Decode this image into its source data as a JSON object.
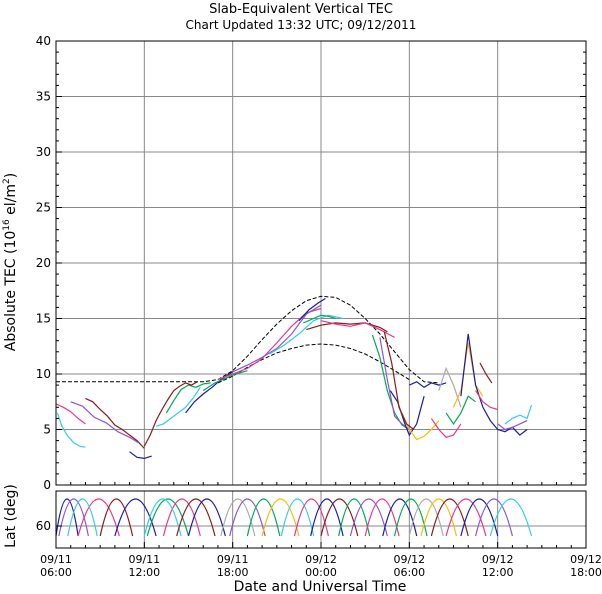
{
  "chart_data": {
    "type": "line",
    "title": "Slab-Equivalent Vertical TEC",
    "subtitle": "Chart Updated 13:32 UTC; 09/12/2011",
    "xlabel": "Date and Universal Time",
    "ylabel": "Absolute TEC (10",
    "ylabel_sup": "16",
    "ylabel_mid": " el/m",
    "ylabel_sup2": "2",
    "ylabel_end": ")",
    "ylabel2": "Lat (deg)",
    "xlim": [
      6,
      42
    ],
    "ylim": [
      0,
      40
    ],
    "yticks": [
      0,
      5,
      10,
      15,
      20,
      25,
      30,
      35,
      40
    ],
    "xticks": [
      {
        "x": 6,
        "date": "09/11",
        "time": "06:00"
      },
      {
        "x": 12,
        "date": "09/11",
        "time": "12:00"
      },
      {
        "x": 18,
        "date": "09/11",
        "time": "18:00"
      },
      {
        "x": 24,
        "date": "09/12",
        "time": "00:00"
      },
      {
        "x": 30,
        "date": "09/12",
        "time": "06:00"
      },
      {
        "x": 36,
        "date": "09/12",
        "time": "12:00"
      },
      {
        "x": 42,
        "date": "09/12",
        "time": "18:00"
      }
    ],
    "lat_ticks": [
      60
    ],
    "grid": true,
    "reference_lines": [
      {
        "name": "upper envelope",
        "style": "dashed",
        "x": [
          6,
          8,
          10,
          12,
          14,
          16,
          17,
          18,
          19,
          20,
          21,
          22,
          23,
          24,
          25,
          26,
          27,
          28,
          29,
          30,
          31,
          32
        ],
        "y": [
          9.3,
          9.3,
          9.3,
          9.3,
          9.3,
          9.3,
          9.5,
          10.3,
          11.6,
          13.1,
          14.5,
          15.7,
          16.6,
          17.0,
          16.9,
          16.2,
          15.0,
          13.6,
          12.0,
          10.4,
          9.3,
          9.2
        ]
      },
      {
        "name": "lower envelope",
        "style": "dashed",
        "x": [
          17,
          18,
          19,
          20,
          21,
          22,
          23,
          24,
          25,
          26,
          27,
          28,
          29,
          30
        ],
        "y": [
          9.2,
          9.8,
          10.6,
          11.3,
          11.9,
          12.3,
          12.6,
          12.7,
          12.6,
          12.3,
          11.8,
          11.1,
          10.3,
          9.5
        ]
      }
    ],
    "series": [
      {
        "color": "#e8388c",
        "x": [
          6.0,
          6.5,
          7.0,
          7.5,
          8.0
        ],
        "y": [
          7.3,
          7.0,
          6.6,
          6.0,
          5.5
        ]
      },
      {
        "color": "#8b1a1a",
        "x": [
          8.0,
          8.5,
          9.0,
          9.5,
          10.0,
          10.5,
          11.0,
          11.5,
          12.0
        ],
        "y": [
          7.8,
          7.5,
          6.8,
          6.2,
          5.4,
          5.0,
          4.5,
          4.0,
          3.3
        ]
      },
      {
        "color": "#33ccee",
        "x": [
          6.1,
          6.4,
          6.8,
          7.2,
          7.6,
          8.0
        ],
        "y": [
          6.5,
          5.3,
          4.4,
          3.8,
          3.5,
          3.4
        ]
      },
      {
        "color": "#8855dd",
        "x": [
          7.0,
          7.8,
          8.6,
          9.4,
          10.2,
          11.0,
          11.6
        ],
        "y": [
          7.5,
          7.1,
          6.1,
          5.6,
          4.8,
          4.3,
          3.8
        ]
      },
      {
        "color": "#1a1aa8",
        "x": [
          11.0,
          11.5,
          12.0,
          12.5
        ],
        "y": [
          3.0,
          2.5,
          2.4,
          2.6
        ]
      },
      {
        "color": "#1a1aa8",
        "x": [
          14.8,
          15.4,
          16.0,
          16.6,
          17.2,
          18.0
        ],
        "y": [
          6.5,
          7.5,
          8.2,
          8.8,
          9.5,
          10.2
        ]
      },
      {
        "color": "#00aa55",
        "x": [
          13.5,
          14.0,
          14.5,
          15.0,
          15.5,
          16.0,
          16.5
        ],
        "y": [
          6.5,
          7.6,
          8.6,
          9.0,
          8.8,
          9.1,
          9.2
        ]
      },
      {
        "color": "#8b1a1a",
        "x": [
          12.0,
          12.4,
          12.8,
          13.2,
          13.6,
          14.0,
          14.4,
          14.8,
          15.2,
          15.6
        ],
        "y": [
          3.5,
          4.5,
          5.8,
          6.8,
          7.7,
          8.5,
          8.9,
          9.2,
          9.0,
          9.3
        ]
      },
      {
        "color": "#33ccee",
        "x": [
          12.8,
          13.3,
          13.8,
          14.3,
          14.8,
          15.3,
          15.8
        ],
        "y": [
          5.3,
          5.5,
          6.0,
          6.5,
          7.0,
          7.8,
          8.8
        ]
      },
      {
        "color": "#00aa55",
        "x": [
          16.0,
          16.8,
          17.5,
          18.2,
          19.0
        ],
        "y": [
          8.5,
          9.2,
          9.6,
          10.0,
          10.3
        ]
      },
      {
        "color": "#e8388c",
        "x": [
          17.0,
          18.0,
          19.0,
          20.0,
          21.0,
          22.0,
          23.0,
          24.0
        ],
        "y": [
          9.5,
          10.0,
          10.5,
          11.4,
          12.8,
          14.3,
          15.5,
          15.9
        ]
      },
      {
        "color": "#8855dd",
        "x": [
          18.0,
          19.0,
          20.0,
          21.0,
          22.0,
          23.0,
          24.0
        ],
        "y": [
          10.2,
          10.8,
          11.5,
          12.3,
          13.6,
          15.4,
          16.2
        ]
      },
      {
        "color": "#33ccee",
        "x": [
          20.5,
          21.5,
          22.5,
          23.5,
          24.5,
          25.5
        ],
        "y": [
          11.8,
          12.6,
          13.6,
          14.8,
          15.3,
          15.0
        ]
      },
      {
        "color": "#1a1aa8",
        "x": [
          22.5,
          23.2,
          23.8,
          24.3
        ],
        "y": [
          14.8,
          15.8,
          16.4,
          16.8
        ]
      },
      {
        "color": "#00aa55",
        "x": [
          22.8,
          23.5,
          24.0,
          24.5,
          25.0
        ],
        "y": [
          14.6,
          15.0,
          15.3,
          15.2,
          15.0
        ]
      },
      {
        "color": "#8b1a1a",
        "x": [
          23.0,
          24.0,
          25.0,
          26.0,
          27.0,
          28.0,
          28.5
        ],
        "y": [
          14.0,
          14.4,
          14.6,
          14.5,
          14.6,
          14.2,
          13.8
        ]
      },
      {
        "color": "#e8388c",
        "x": [
          24.0,
          25.0,
          26.0,
          27.0,
          28.0,
          29.0
        ],
        "y": [
          14.8,
          14.5,
          14.3,
          14.6,
          14.0,
          13.3
        ]
      },
      {
        "color": "#00aa55",
        "x": [
          27.5,
          28.0,
          28.5,
          29.0,
          29.5,
          30.0
        ],
        "y": [
          13.5,
          11.5,
          8.5,
          6.5,
          5.4,
          5.0
        ]
      },
      {
        "color": "#8855dd",
        "x": [
          28.0,
          28.5,
          29.0,
          29.5,
          30.0
        ],
        "y": [
          13.3,
          9.5,
          6.2,
          5.5,
          5.0
        ]
      },
      {
        "color": "#1a1aa8",
        "x": [
          28.7,
          29.2,
          29.7,
          30.0,
          30.5,
          31.0
        ],
        "y": [
          8.5,
          7.5,
          5.5,
          4.5,
          5.5,
          8.0
        ]
      },
      {
        "color": "#ffbb00",
        "x": [
          29.5,
          30.0,
          30.5,
          31.0,
          31.5,
          32.0
        ],
        "y": [
          6.5,
          5.0,
          4.1,
          4.4,
          5.0,
          5.8
        ]
      },
      {
        "color": "#8b1a1a",
        "x": [
          28.3,
          28.8,
          29.3,
          29.8,
          30.3
        ],
        "y": [
          13.8,
          11.0,
          7.0,
          5.5,
          5.0
        ]
      },
      {
        "color": "#1a1aa8",
        "x": [
          30.0,
          30.5,
          31.0,
          31.5,
          32.0,
          32.5
        ],
        "y": [
          9.0,
          9.3,
          8.8,
          9.2,
          9.0,
          9.2
        ]
      },
      {
        "color": "#e8388c",
        "x": [
          31.5,
          32.0,
          32.5,
          33.0,
          33.5
        ],
        "y": [
          6.0,
          5.0,
          4.3,
          4.5,
          5.5
        ]
      },
      {
        "color": "#aaaaaa",
        "x": [
          32.0,
          32.5,
          33.0,
          33.5
        ],
        "y": [
          8.5,
          10.5,
          9.0,
          7.0
        ]
      },
      {
        "color": "#00aa55",
        "x": [
          32.5,
          33.0,
          33.5,
          34.0,
          34.5
        ],
        "y": [
          6.5,
          5.5,
          6.5,
          8.0,
          7.5
        ]
      },
      {
        "color": "#ffbb00",
        "x": [
          33.0,
          33.5,
          34.0,
          34.5,
          35.0
        ],
        "y": [
          7.0,
          8.5,
          12.8,
          9.0,
          8.0
        ]
      },
      {
        "color": "#1a1aa8",
        "x": [
          33.5,
          34.0,
          34.5,
          35.0,
          35.5,
          36.0,
          36.5,
          37.0,
          37.5,
          38.0
        ],
        "y": [
          8.0,
          13.6,
          9.0,
          7.0,
          5.8,
          5.0,
          4.8,
          5.2,
          4.5,
          5.0
        ]
      },
      {
        "color": "#e8388c",
        "x": [
          34.5,
          35.0,
          35.5,
          36.0
        ],
        "y": [
          8.5,
          7.5,
          7.0,
          6.8
        ]
      },
      {
        "color": "#8b1a1a",
        "x": [
          34.8,
          35.2,
          35.6
        ],
        "y": [
          11.0,
          10.0,
          9.2
        ]
      },
      {
        "color": "#33ccee",
        "x": [
          36.5,
          37.0,
          37.5,
          38.0,
          38.3
        ],
        "y": [
          5.5,
          6.0,
          6.3,
          6.0,
          7.2
        ]
      },
      {
        "color": "#8855dd",
        "x": [
          36.0,
          36.5,
          37.0,
          37.5,
          38.0
        ],
        "y": [
          5.5,
          5.0,
          5.2,
          5.5,
          5.8
        ]
      }
    ],
    "lat_arcs": [
      {
        "color": "#1a1aa8",
        "x0": 6.0,
        "x1": 7.5
      },
      {
        "color": "#8855dd",
        "x0": 6.2,
        "x1": 8.2
      },
      {
        "color": "#e8388c",
        "x0": 7.5,
        "x1": 10.3
      },
      {
        "color": "#8b1a1a",
        "x0": 9.0,
        "x1": 11.2
      },
      {
        "color": "#33ccee",
        "x0": 6.8,
        "x1": 8.8
      },
      {
        "color": "#1a1aa8",
        "x0": 10.0,
        "x1": 12.8
      },
      {
        "color": "#00aa55",
        "x0": 12.2,
        "x1": 15.0
      },
      {
        "color": "#e8388c",
        "x0": 13.3,
        "x1": 15.8
      },
      {
        "color": "#33ccee",
        "x0": 12.0,
        "x1": 14.5
      },
      {
        "color": "#8b1a1a",
        "x0": 14.2,
        "x1": 16.8
      },
      {
        "color": "#1a1aa8",
        "x0": 15.0,
        "x1": 17.5
      },
      {
        "color": "#aaaaaa",
        "x0": 17.2,
        "x1": 19.5
      },
      {
        "color": "#8855dd",
        "x0": 17.8,
        "x1": 20.2
      },
      {
        "color": "#00aa55",
        "x0": 19.0,
        "x1": 21.2
      },
      {
        "color": "#ffbb00",
        "x0": 20.0,
        "x1": 22.5
      },
      {
        "color": "#33ccee",
        "x0": 21.3,
        "x1": 23.5
      },
      {
        "color": "#e8388c",
        "x0": 22.2,
        "x1": 24.5
      },
      {
        "color": "#1a1aa8",
        "x0": 23.3,
        "x1": 25.5
      },
      {
        "color": "#8b1a1a",
        "x0": 24.0,
        "x1": 26.5
      },
      {
        "color": "#00aa55",
        "x0": 25.2,
        "x1": 27.3
      },
      {
        "color": "#8855dd",
        "x0": 26.0,
        "x1": 28.5
      },
      {
        "color": "#e8388c",
        "x0": 27.0,
        "x1": 29.3
      },
      {
        "color": "#1a1aa8",
        "x0": 28.2,
        "x1": 30.5
      },
      {
        "color": "#00aa55",
        "x0": 29.0,
        "x1": 31.2
      },
      {
        "color": "#aaaaaa",
        "x0": 30.0,
        "x1": 32.3
      },
      {
        "color": "#ffbb00",
        "x0": 30.8,
        "x1": 33.2
      },
      {
        "color": "#8b1a1a",
        "x0": 31.5,
        "x1": 34.0
      },
      {
        "color": "#e8388c",
        "x0": 32.5,
        "x1": 35.2
      },
      {
        "color": "#1a1aa8",
        "x0": 33.5,
        "x1": 36.0
      },
      {
        "color": "#8855dd",
        "x0": 34.5,
        "x1": 37.0
      },
      {
        "color": "#33ccee",
        "x0": 35.5,
        "x1": 38.3
      }
    ]
  }
}
